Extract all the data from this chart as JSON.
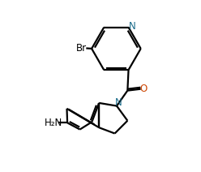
{
  "background_color": "#ffffff",
  "bond_color": "#000000",
  "N_color": "#1a6b8a",
  "O_color": "#cc4400",
  "linewidth": 1.6,
  "figsize": [
    2.48,
    2.12
  ],
  "dpi": 100,
  "xlim": [
    0,
    10
  ],
  "ylim": [
    0,
    8.5
  ]
}
